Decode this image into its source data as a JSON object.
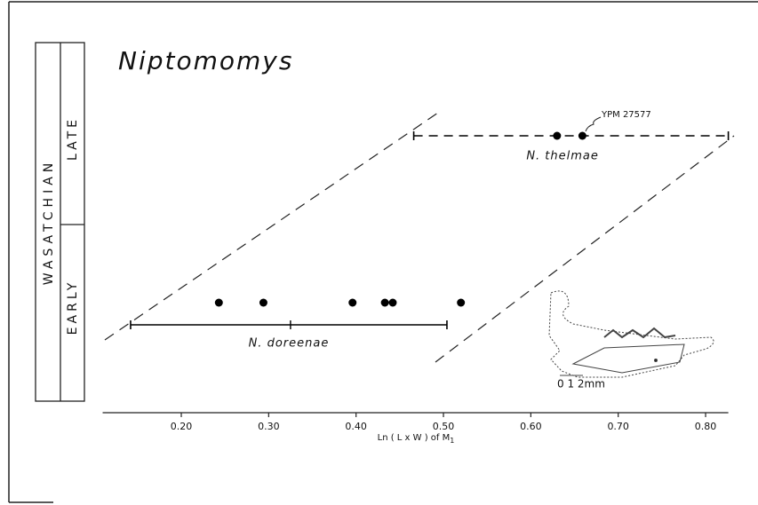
{
  "chart_data": {
    "type": "range-dot",
    "title": "Niptomomys",
    "stage": "WASATCHIAN",
    "substages": [
      "EARLY",
      "LATE"
    ],
    "xlabel": "Ln ( L x W )   of   M",
    "xlabel_sub": "1",
    "xlim": [
      0.11,
      0.826
    ],
    "xticks": [
      {
        "value": 0.2,
        "label": "0.20"
      },
      {
        "value": 0.3,
        "label": "0.30"
      },
      {
        "value": 0.4,
        "label": "0.40"
      },
      {
        "value": 0.5,
        "label": "0.50"
      },
      {
        "value": 0.6,
        "label": "0.60"
      },
      {
        "value": 0.7,
        "label": "0.70"
      },
      {
        "value": 0.8,
        "label": "0.80"
      }
    ],
    "series": [
      {
        "name": "N. doreenae",
        "color": "#000000",
        "values": [
          0.243,
          0.294,
          0.396,
          0.433,
          0.442,
          0.52
        ],
        "range": [
          0.142,
          0.504
        ],
        "mean": 0.325,
        "dashed": false
      },
      {
        "name": "N. thelmae",
        "color": "#000000",
        "values": [
          0.63,
          0.659
        ],
        "range": [
          0.466,
          0.826
        ],
        "dashed": true
      }
    ],
    "annotation": "YPM 27577",
    "scale_label": "0 1 2mm"
  }
}
